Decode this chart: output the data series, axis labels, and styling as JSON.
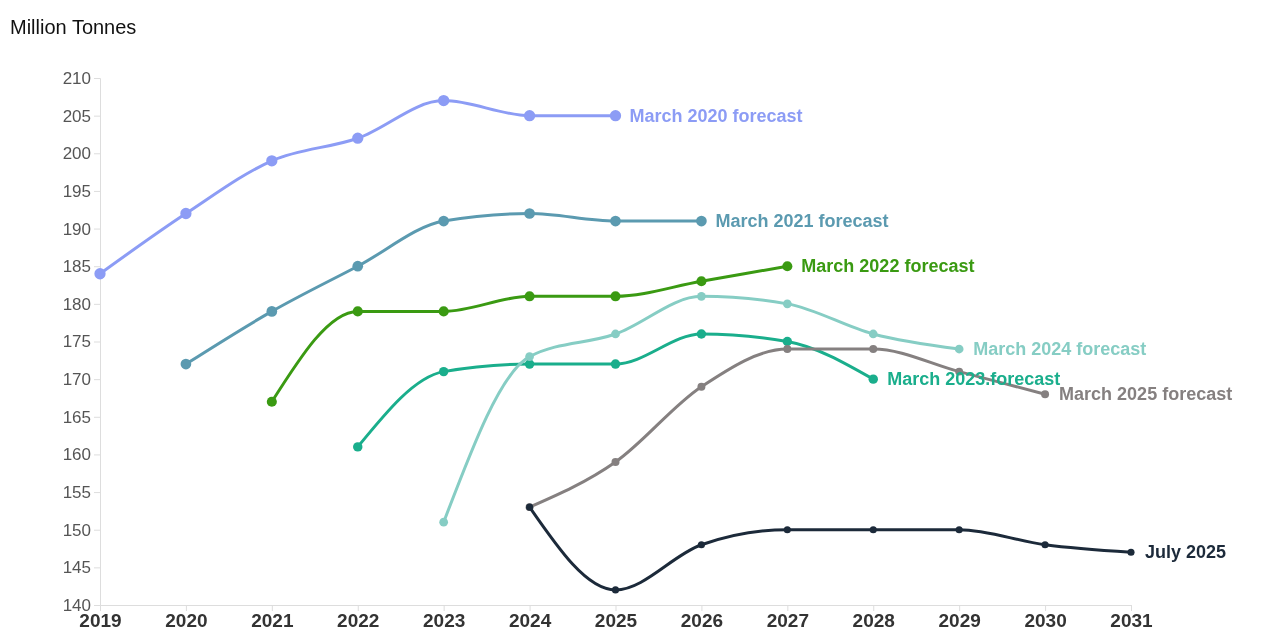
{
  "chart_data": {
    "type": "line",
    "ylabel": "Million Tonnes",
    "xlim": [
      2019,
      2031
    ],
    "xticks": [
      2019,
      2020,
      2021,
      2022,
      2023,
      2024,
      2025,
      2026,
      2027,
      2028,
      2029,
      2030,
      2031
    ],
    "ylim": [
      140,
      210
    ],
    "yticks": [
      140,
      145,
      150,
      155,
      160,
      165,
      170,
      175,
      180,
      185,
      190,
      195,
      200,
      205,
      210
    ],
    "grid": false,
    "legend": false,
    "marker": "circle",
    "line_style": "solid",
    "series": [
      {
        "name": "March 2020 forecast",
        "color": "#8c9cf5",
        "x": [
          2019,
          2020,
          2021,
          2022,
          2023,
          2024,
          2025
        ],
        "values": [
          184,
          192,
          199,
          202,
          207,
          205,
          205
        ]
      },
      {
        "name": "March 2021 forecast",
        "color": "#5b9ab0",
        "x": [
          2020,
          2021,
          2022,
          2023,
          2024,
          2025,
          2026
        ],
        "values": [
          172,
          179,
          185,
          191,
          192,
          191,
          191
        ]
      },
      {
        "name": "March 2022 forecast",
        "color": "#3a9a12",
        "x": [
          2021,
          2022,
          2023,
          2024,
          2025,
          2026,
          2027
        ],
        "values": [
          167,
          179,
          179,
          181,
          181,
          183,
          185
        ]
      },
      {
        "name": "March 2023.forecast",
        "color": "#1aae8c",
        "x": [
          2022,
          2023,
          2024,
          2025,
          2026,
          2027,
          2028
        ],
        "values": [
          161,
          171,
          172,
          172,
          176,
          175,
          170
        ]
      },
      {
        "name": "March 2024 forecast",
        "color": "#86cdc4",
        "x": [
          2023,
          2024,
          2025,
          2026,
          2027,
          2028,
          2029
        ],
        "values": [
          151,
          173,
          176,
          181,
          180,
          176,
          174
        ]
      },
      {
        "name": "March 2025 forecast",
        "color": "#858080",
        "x": [
          2024,
          2025,
          2026,
          2027,
          2028,
          2029,
          2030
        ],
        "values": [
          153,
          159,
          169,
          174,
          174,
          171,
          168
        ]
      },
      {
        "name": "July 2025",
        "color": "#1c2a3a",
        "x": [
          2024,
          2025,
          2026,
          2027,
          2028,
          2029,
          2030,
          2031
        ],
        "values": [
          153,
          142,
          148,
          150,
          150,
          150,
          148,
          147
        ]
      }
    ]
  }
}
